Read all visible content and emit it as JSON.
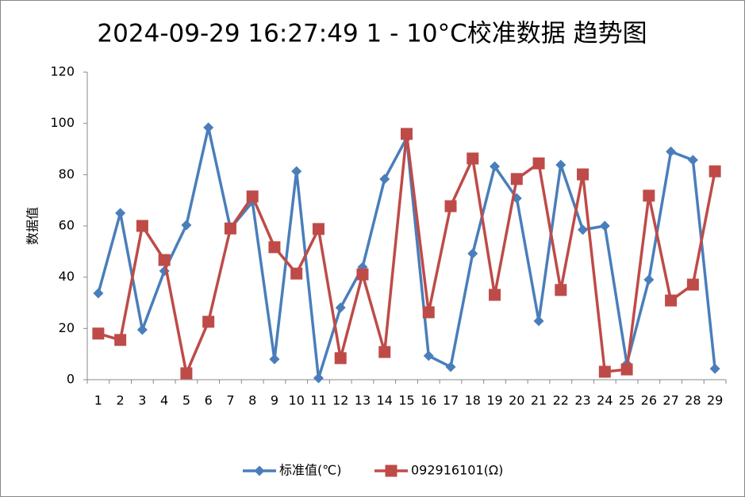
{
  "chart_data": {
    "type": "line",
    "title": "2024-09-29 16:27:49 1 - 10°C校准数据 趋势图",
    "y_label": "数据值",
    "categories": [
      "1",
      "2",
      "3",
      "4",
      "5",
      "6",
      "7",
      "8",
      "9",
      "10",
      "11",
      "12",
      "13",
      "14",
      "15",
      "16",
      "17",
      "18",
      "19",
      "20",
      "21",
      "22",
      "23",
      "24",
      "25",
      "26",
      "27",
      "28",
      "29"
    ],
    "series": [
      {
        "name": "标准值(℃)",
        "color": "#4a7ebb",
        "marker": "diamond",
        "values": [
          33.7,
          65,
          19.5,
          42.4,
          60.3,
          98.4,
          59,
          69.3,
          8,
          81.3,
          0.6,
          28.1,
          43.9,
          78.3,
          94.3,
          9.3,
          5,
          49.2,
          83.2,
          70.8,
          22.9,
          83.8,
          58.5,
          60,
          6.2,
          39,
          89,
          85.7,
          4.3
        ]
      },
      {
        "name": "092916101(Ω)",
        "color": "#be4b48",
        "marker": "square",
        "values": [
          18,
          15.5,
          60,
          46.7,
          2.5,
          22.6,
          59,
          71.5,
          51.7,
          41.4,
          58.8,
          8.4,
          41.1,
          10.8,
          95.9,
          26.3,
          67.7,
          86.3,
          33.1,
          78.3,
          84.4,
          35,
          80.1,
          3.1,
          4,
          71.8,
          30.9,
          37.1,
          81.3
        ]
      }
    ],
    "ylim": [
      0,
      120
    ],
    "yticks": [
      0,
      20,
      40,
      60,
      80,
      100,
      120
    ],
    "grid": false,
    "legend": "bottom"
  }
}
